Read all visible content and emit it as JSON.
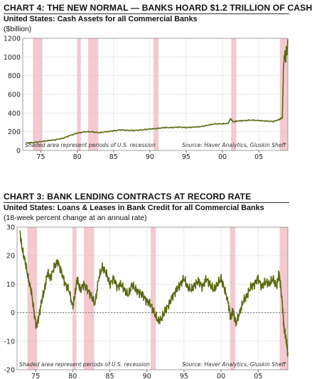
{
  "charts": [
    {
      "heading": "CHART 4: THE NEW NORMAL — BANKS HOARD $1.2 TRILLION OF CASH",
      "subtitle": "United States: Cash Assets for all Commercial Banks",
      "units": "($billion)",
      "note_left": "Shaded area represent periods of U.S. recession",
      "note_right": "Source: Haver Analytics, Gluskin Sheff"
    },
    {
      "heading": "CHART 3: BANK LENDING CONTRACTS AT RECORD RATE",
      "subtitle": "United States: Loans & Leases in Bank Credit for all Commercial Banks",
      "units": "(18-week percent change at an annual rate)",
      "note_left": "Shaded area represent periods of U.S. recession",
      "note_right": "Source: Haver Analytics, Gluskin Sheff"
    }
  ],
  "colors": {
    "line": "#5b6a12",
    "recession": "#f4c9cf",
    "grid": "#c9c9c9",
    "frame": "#888888"
  },
  "recessions": [
    [
      1973.9,
      1975.2
    ],
    [
      1980.0,
      1980.5
    ],
    [
      1981.5,
      1982.9
    ],
    [
      1990.5,
      1991.2
    ],
    [
      2001.2,
      2001.9
    ],
    [
      2007.9,
      2009.0
    ]
  ],
  "chart_data": [
    {
      "type": "line",
      "title": "CHART 4: THE NEW NORMAL — BANKS HOARD $1.2 TRILLION OF CASH",
      "xlabel": "",
      "ylabel": "($billion)",
      "xlim": [
        1972.5,
        2009.0
      ],
      "ylim": [
        0,
        1200
      ],
      "xticks": [
        1975,
        1980,
        1985,
        1990,
        1995,
        2000,
        2005
      ],
      "xtick_labels": [
        "75",
        "80",
        "85",
        "90",
        "95",
        "00",
        "05"
      ],
      "yticks": [
        0,
        200,
        400,
        600,
        800,
        1000,
        1200
      ],
      "ytick_labels": [
        "0",
        "200",
        "400",
        "600",
        "800",
        "1000",
        "1200"
      ],
      "grid": true,
      "series": [
        {
          "x": [
            1973.0,
            1974.0,
            1975.0,
            1976.0,
            1977.0,
            1978.0,
            1979.0,
            1980.0,
            1981.0,
            1982.0,
            1983.0,
            1984.0,
            1985.0,
            1986.0,
            1987.0,
            1988.0,
            1989.0,
            1990.0,
            1991.0,
            1992.0,
            1993.0,
            1994.0,
            1995.0,
            1996.0,
            1997.0,
            1998.0,
            1999.0,
            2000.0,
            2000.8,
            2001.1,
            2001.5,
            2002.0,
            2003.0,
            2004.0,
            2005.0,
            2006.0,
            2007.0,
            2007.8,
            2008.0,
            2008.25,
            2008.4,
            2008.6,
            2008.7,
            2008.8,
            2008.9,
            2009.0
          ],
          "values": [
            80,
            85,
            95,
            105,
            115,
            130,
            160,
            185,
            200,
            200,
            190,
            200,
            210,
            220,
            215,
            215,
            220,
            230,
            235,
            245,
            245,
            250,
            245,
            250,
            255,
            270,
            285,
            285,
            290,
            340,
            305,
            315,
            320,
            325,
            320,
            315,
            310,
            330,
            340,
            350,
            900,
            1050,
            950,
            1100,
            1050,
            1180
          ]
        }
      ]
    },
    {
      "type": "line",
      "title": "CHART 3: BANK LENDING CONTRACTS AT RECORD RATE",
      "xlabel": "",
      "ylabel": "(18-week percent change at an annual rate)",
      "xlim": [
        1972.5,
        2009.0
      ],
      "ylim": [
        -20,
        30
      ],
      "xticks": [
        1975,
        1980,
        1985,
        1990,
        1995,
        2000,
        2005
      ],
      "xtick_labels": [
        "75",
        "80",
        "85",
        "90",
        "95",
        "00",
        "05"
      ],
      "yticks": [
        -20,
        -10,
        0,
        10,
        20,
        30
      ],
      "ytick_labels": [
        "-20",
        "-10",
        "0",
        "10",
        "20",
        "30"
      ],
      "grid": true,
      "series": [
        {
          "x": [
            1972.9,
            1973.2,
            1973.6,
            1974.0,
            1974.4,
            1974.8,
            1975.1,
            1975.4,
            1975.8,
            1976.2,
            1976.6,
            1977.0,
            1977.5,
            1978.0,
            1978.5,
            1979.0,
            1979.5,
            1980.0,
            1980.3,
            1980.6,
            1981.0,
            1981.5,
            1982.0,
            1982.5,
            1983.0,
            1983.5,
            1984.0,
            1984.5,
            1985.0,
            1985.5,
            1986.0,
            1986.5,
            1987.0,
            1987.5,
            1988.0,
            1988.5,
            1989.0,
            1989.5,
            1990.0,
            1990.5,
            1991.0,
            1991.5,
            1992.0,
            1992.5,
            1993.0,
            1993.5,
            1994.0,
            1994.5,
            1995.0,
            1995.5,
            1996.0,
            1996.5,
            1997.0,
            1997.5,
            1998.0,
            1998.5,
            1999.0,
            1999.5,
            2000.0,
            2000.5,
            2001.0,
            2001.3,
            2001.6,
            2002.0,
            2002.5,
            2003.0,
            2003.5,
            2004.0,
            2004.5,
            2005.0,
            2005.5,
            2006.0,
            2006.5,
            2007.0,
            2007.5,
            2007.8,
            2008.0,
            2008.3,
            2008.5,
            2008.7,
            2008.9,
            2009.0
          ],
          "values": [
            28,
            22,
            18,
            12,
            8,
            0,
            -5,
            -2,
            4,
            8,
            14,
            12,
            16,
            18,
            14,
            10,
            8,
            2,
            6,
            12,
            8,
            10,
            8,
            6,
            3,
            12,
            16,
            14,
            10,
            12,
            9,
            10,
            8,
            6,
            10,
            8,
            7,
            6,
            4,
            3,
            0,
            -3,
            -2,
            1,
            3,
            6,
            8,
            10,
            12,
            9,
            8,
            10,
            11,
            9,
            12,
            10,
            8,
            10,
            12,
            8,
            3,
            -2,
            1,
            -4,
            0,
            4,
            6,
            9,
            10,
            12,
            9,
            11,
            10,
            12,
            9,
            14,
            10,
            2,
            -6,
            -8,
            -12,
            -15
          ]
        }
      ]
    }
  ]
}
